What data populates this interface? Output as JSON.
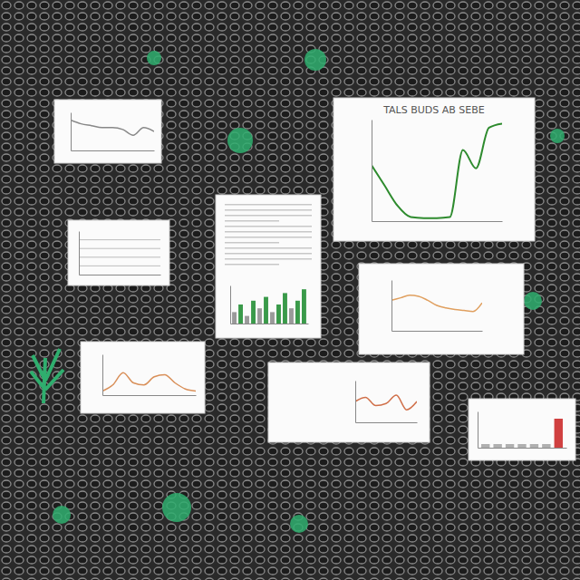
{
  "chart_data": [
    {
      "type": "line",
      "x": [
        0,
        1,
        2,
        3,
        4,
        5,
        6,
        7,
        8
      ],
      "xlim": [
        0,
        8
      ],
      "ylim": [
        0,
        10
      ],
      "values": [
        8,
        7,
        6.5,
        6,
        6,
        5.5,
        4,
        6,
        5
      ],
      "color": "#888888",
      "tick_labels": false
    },
    {
      "type": "line",
      "title": "TALS BUDS AB SEBE",
      "x": [
        0,
        1,
        2,
        3,
        4,
        5,
        6,
        7,
        8,
        9,
        10
      ],
      "xlim": [
        0,
        10
      ],
      "ylim": [
        0,
        100
      ],
      "values": [
        55,
        35,
        15,
        4,
        3,
        3,
        4,
        70,
        52,
        92,
        96
      ],
      "color": "#2e8b2e",
      "tick_labels": false
    },
    {
      "type": "line",
      "x": [],
      "values": [],
      "xlim": [
        0,
        10
      ],
      "ylim": [
        0,
        10
      ],
      "grid": true,
      "yticks": [
        2,
        4,
        6,
        8
      ],
      "color": "#888888",
      "tick_labels": false
    },
    {
      "type": "bar",
      "categories": [
        null,
        null,
        null,
        null,
        null,
        null,
        null,
        null,
        null,
        null,
        null,
        null
      ],
      "values": [
        3,
        5,
        2,
        6,
        4,
        7,
        3,
        5,
        8,
        4,
        6,
        9
      ],
      "colors": [
        "#9a9a9a",
        "#3a9a4a",
        "#9a9a9a",
        "#3a9a4a",
        "#9a9a9a",
        "#3a9a4a",
        "#9a9a9a",
        "#3a9a4a",
        "#3a9a4a",
        "#9a9a9a",
        "#3a9a4a",
        "#3a9a4a"
      ],
      "ylim": [
        0,
        10
      ],
      "tick_labels": false
    },
    {
      "type": "line",
      "x": [
        0,
        1,
        2,
        3,
        4,
        5,
        6,
        7,
        8,
        9,
        10
      ],
      "xlim": [
        0,
        10
      ],
      "ylim": [
        0,
        10
      ],
      "values": [
        6,
        6.5,
        7,
        6.8,
        6,
        5,
        4.5,
        4.2,
        4,
        3.8,
        5.5
      ],
      "color": "#e0a060",
      "tick_labels": false
    },
    {
      "type": "line",
      "x": [
        0,
        1,
        2,
        3,
        4,
        5,
        6,
        7,
        8,
        9
      ],
      "xlim": [
        0,
        9
      ],
      "ylim": [
        0,
        10
      ],
      "values": [
        1,
        2.5,
        5.5,
        3,
        2.5,
        4.5,
        5,
        3,
        1.5,
        1
      ],
      "color": "#d9905a",
      "tick_labels": false
    },
    {
      "type": "line",
      "x": [
        0,
        1,
        2,
        3,
        4,
        5,
        6
      ],
      "xlim": [
        0,
        6
      ],
      "ylim": [
        0,
        10
      ],
      "values": [
        5,
        6,
        4,
        4.5,
        6.5,
        3,
        5
      ],
      "color": "#d0704a",
      "tick_labels": false
    },
    {
      "type": "bar",
      "categories": [
        null,
        null,
        null,
        null,
        null,
        null,
        null
      ],
      "values": [
        1,
        1,
        1,
        1,
        1,
        1,
        8
      ],
      "colors": [
        "#b0b0b0",
        "#b0b0b0",
        "#b0b0b0",
        "#b0b0b0",
        "#b0b0b0",
        "#b0b0b0",
        "#d04040"
      ],
      "ylim": [
        0,
        10
      ],
      "tick_labels": false
    }
  ]
}
